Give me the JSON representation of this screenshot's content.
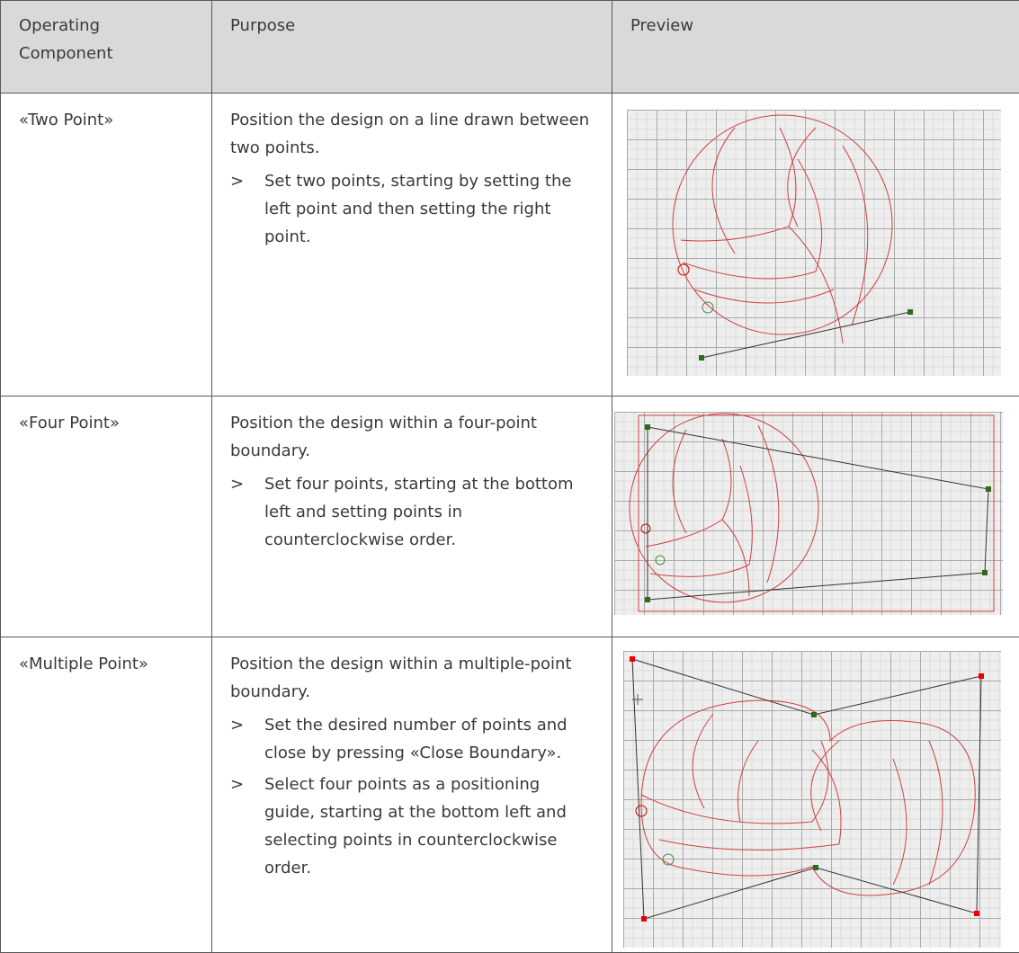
{
  "table": {
    "header": [
      "Operating Component",
      "Purpose",
      "Preview"
    ],
    "step_marker": ">",
    "rows": [
      {
        "component": "«Two Point»",
        "purpose": "Position the design on a line drawn between two points.",
        "steps": [
          "Set two points, starting by setting the left point and then setting the right point."
        ]
      },
      {
        "component": "«Four Point»",
        "purpose": "Position the design within a four-point boundary.",
        "steps": [
          "Set four points, starting at the bottom left and setting points in counterclockwise order."
        ]
      },
      {
        "component": "«Multiple Point»",
        "purpose": "Position the design within a multiple-point boundary.",
        "steps": [
          "Set the desired number of points and close by pressing «Close Boundary».",
          "Select four points as a positioning guide, starting at the bottom left and selecting points in counterclockwise order."
        ]
      }
    ]
  }
}
